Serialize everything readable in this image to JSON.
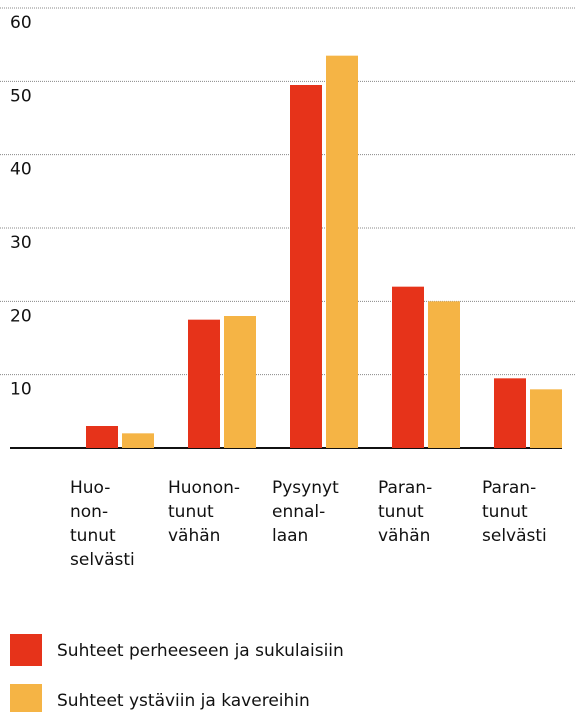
{
  "chart_data": {
    "type": "bar",
    "categories": [
      "Huo-\nnon-\ntunut\nselvästi",
      "Huonon-\ntunut\nvähän",
      "Pysynyt\nennal-\nlaan",
      "Paran-\ntunut\nvähän",
      "Paran-\ntunut\nselvästi"
    ],
    "series": [
      {
        "name": "Suhteet perheeseen ja sukulaisiin",
        "color": "#e6331a",
        "values": [
          3,
          17.5,
          49.5,
          22,
          9.5
        ]
      },
      {
        "name": "Suhteet ystäviin ja kavereihin",
        "color": "#f5b445",
        "values": [
          2,
          18,
          53.5,
          20,
          8
        ]
      }
    ],
    "ylim": [
      0,
      60
    ],
    "yticks": [
      10,
      20,
      30,
      40,
      50,
      60
    ],
    "grid": true,
    "legend": "bottom"
  }
}
